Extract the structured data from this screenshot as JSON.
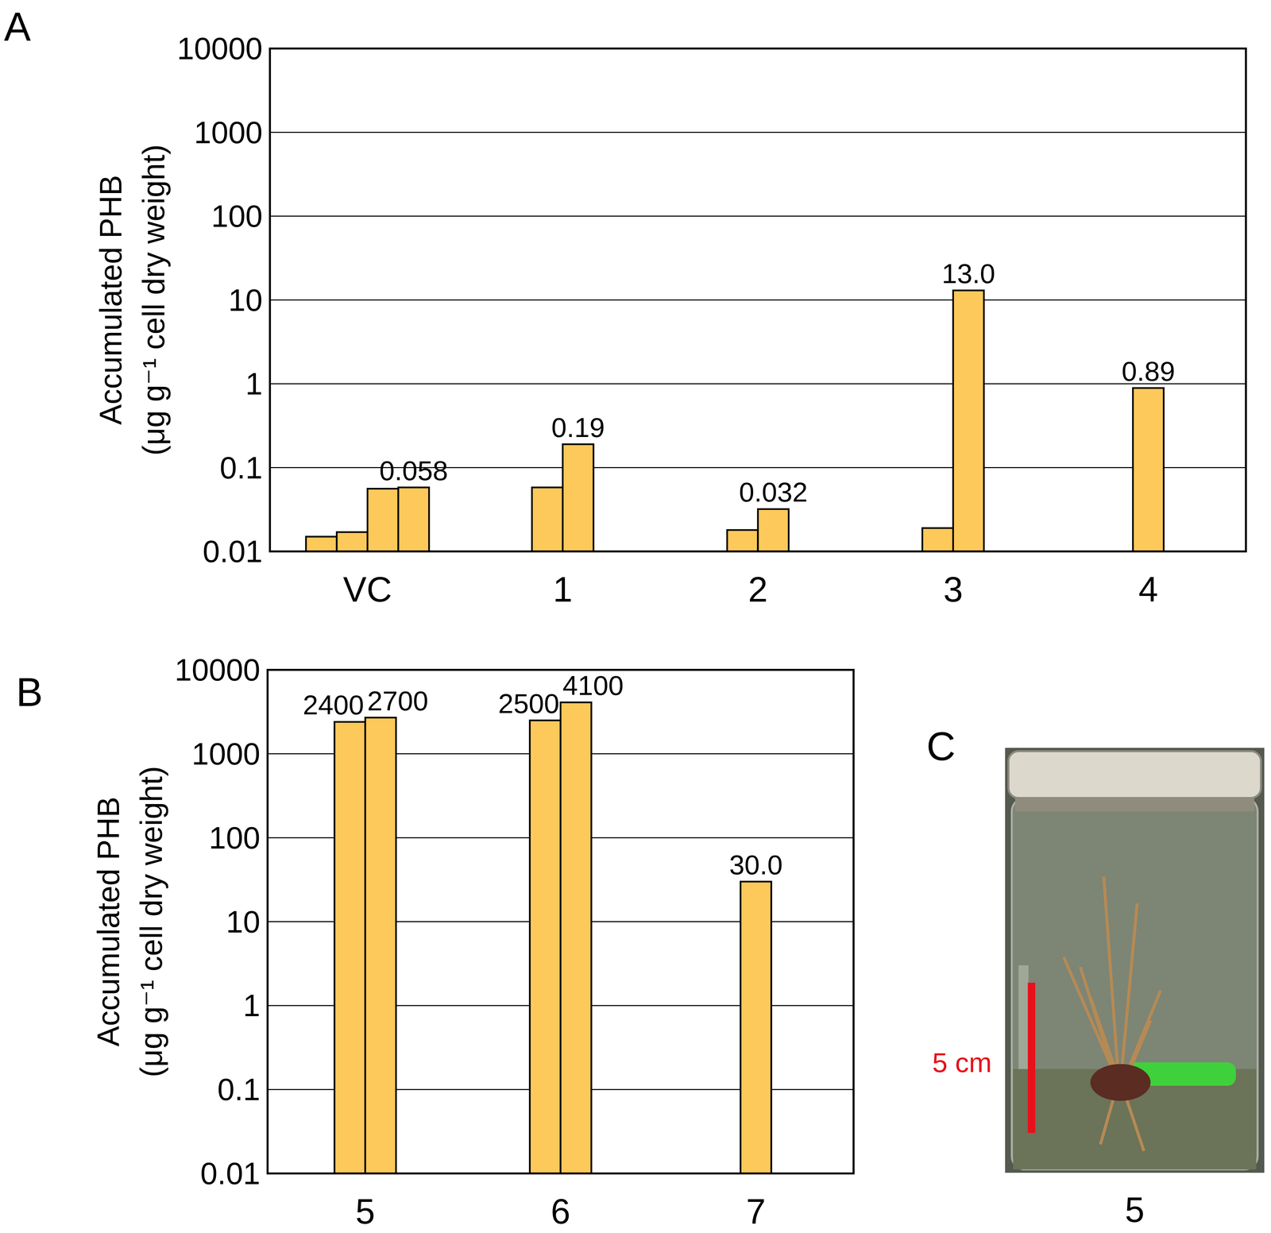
{
  "chart_data": [
    {
      "panel": "A",
      "type": "bar",
      "categories": [
        "VC",
        "1",
        "2",
        "3",
        "4"
      ],
      "values": [
        [
          0.015,
          0.017,
          0.056,
          0.058
        ],
        [
          0.058,
          0.19
        ],
        [
          0.018,
          0.032
        ],
        [
          0.019,
          13.0
        ],
        [
          0.89
        ]
      ],
      "value_labels": [
        [
          null,
          null,
          null,
          "0.058"
        ],
        [
          null,
          "0.19"
        ],
        [
          null,
          "0.032"
        ],
        [
          null,
          "13.0"
        ],
        [
          "0.89"
        ]
      ],
      "data_labels": true,
      "y_label": [
        "Accumulated PHB",
        "(μg g⁻¹ cell dry weight)"
      ],
      "ylim": [
        0.01,
        10000
      ],
      "yticks": [
        0.01,
        0.1,
        1,
        10,
        100,
        1000,
        10000
      ],
      "log": "y",
      "grid": true,
      "color": "#fcc95a"
    },
    {
      "panel": "B",
      "type": "bar",
      "categories": [
        "5",
        "6",
        "7"
      ],
      "values": [
        [
          2400,
          2700
        ],
        [
          2500,
          4100
        ],
        [
          30.0
        ]
      ],
      "value_labels": [
        [
          "2400",
          "2700"
        ],
        [
          "2500",
          "4100"
        ],
        [
          "30.0"
        ]
      ],
      "data_labels": true,
      "y_label": [
        "Accumulated PHB",
        "(μg g⁻¹ cell dry weight)"
      ],
      "ylim": [
        0.01,
        10000
      ],
      "yticks": [
        0.01,
        0.1,
        1,
        10,
        100,
        1000,
        10000
      ],
      "log": "y",
      "grid": true,
      "color": "#fcc95a"
    }
  ],
  "image_panel": {
    "panel": "C",
    "scale_bar_label": "5 cm",
    "caption": "5"
  }
}
